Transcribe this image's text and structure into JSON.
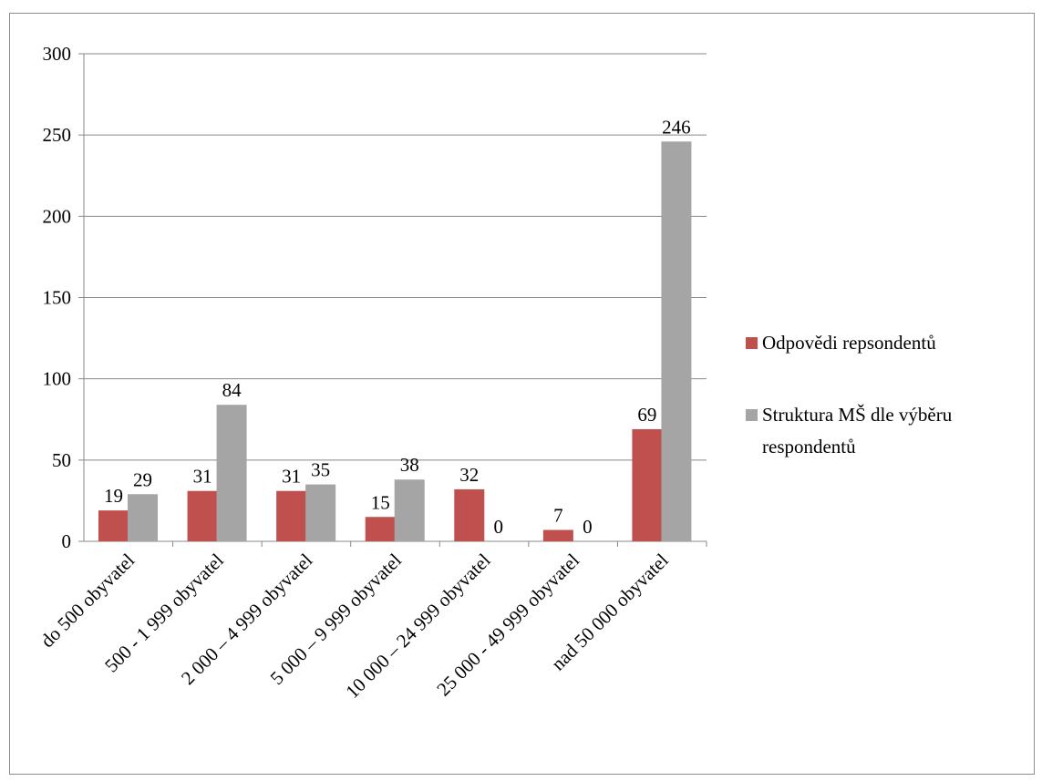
{
  "chart_data": {
    "type": "bar",
    "title": "",
    "xlabel": "",
    "ylabel": "",
    "ylim": [
      0,
      300
    ],
    "yticks": [
      0,
      50,
      100,
      150,
      200,
      250,
      300
    ],
    "grid": true,
    "legend_position": "right",
    "categories": [
      "do 500 obyvatel",
      "500 - 1 999 obyvatel",
      "2 000 – 4 999 obyvatel",
      "5 000 – 9 999 obyvatel",
      "10 000 – 24 999 obyvatel",
      "25 000 - 49 999 obyvatel",
      "nad 50 000 obyvatel"
    ],
    "series": [
      {
        "name": "Odpovědi repsondentů",
        "color": "#c0504d",
        "values": [
          19,
          31,
          31,
          15,
          32,
          7,
          69
        ]
      },
      {
        "name": "Struktura MŠ dle výběru respondentů",
        "color": "#a5a5a5",
        "values": [
          29,
          84,
          35,
          38,
          0,
          0,
          246
        ]
      }
    ]
  },
  "legend": {
    "items": [
      {
        "lines": [
          "Odpovědi repsondentů"
        ],
        "color": "#c0504d",
        "marker": "square"
      },
      {
        "lines": [
          "Struktura MŠ dle výběru",
          "respondentů"
        ],
        "color": "#a5a5a5",
        "marker": "square"
      }
    ]
  }
}
